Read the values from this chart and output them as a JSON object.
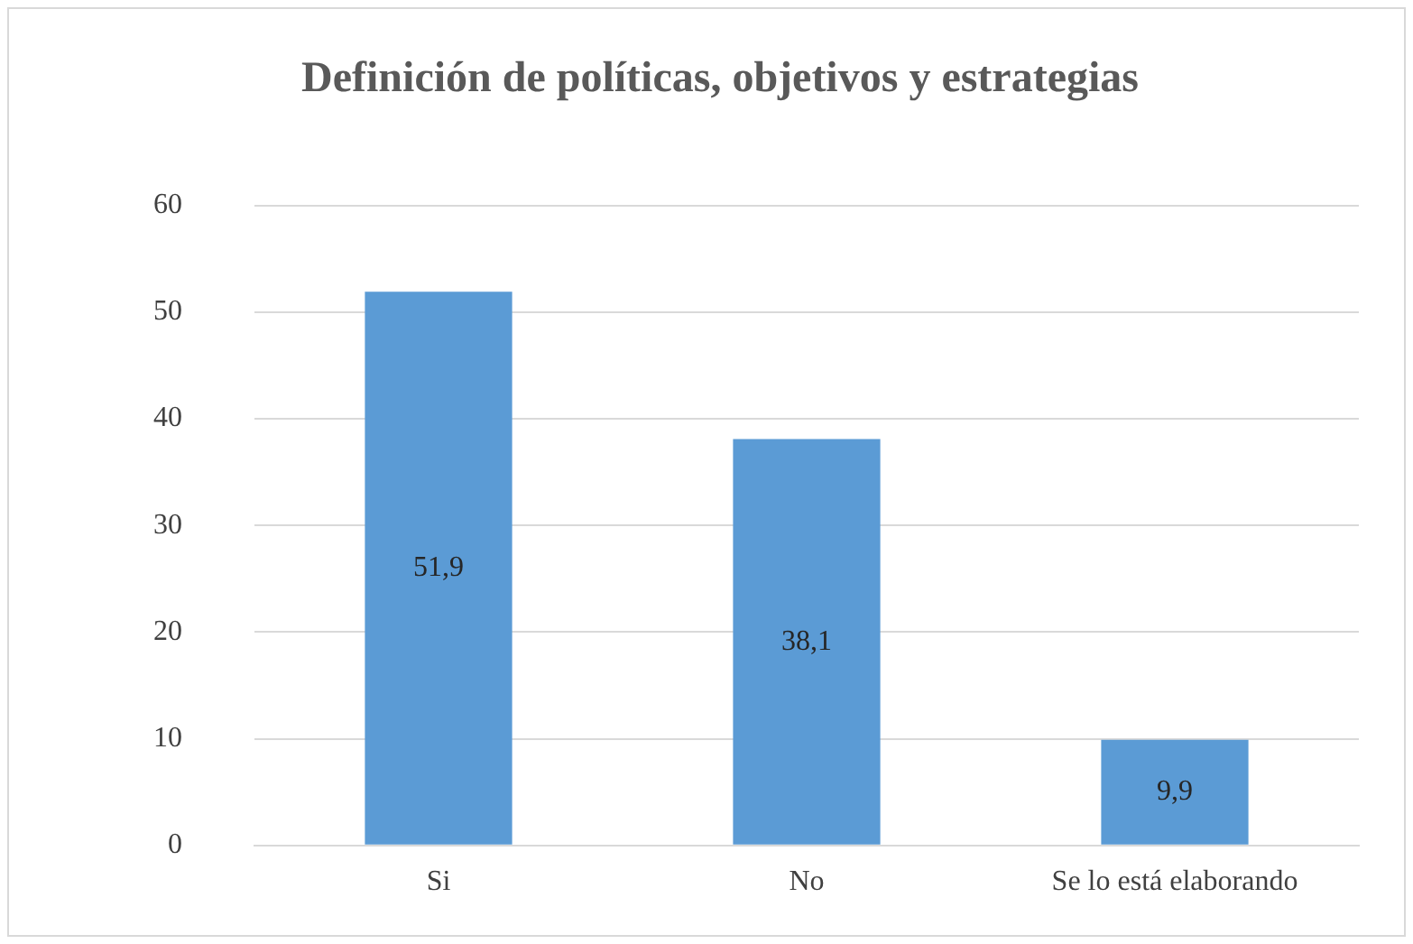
{
  "chart_data": {
    "type": "bar",
    "title": "Definición de políticas, objetivos y estrategias",
    "categories": [
      "Si",
      "No",
      "Se lo está elaborando"
    ],
    "values": [
      51.9,
      38.1,
      9.9
    ],
    "value_labels": [
      "51,9",
      "38,1",
      "9,9"
    ],
    "color": "#5b9bd5",
    "ylim": [
      0,
      60
    ],
    "yticks": [
      0,
      10,
      20,
      30,
      40,
      50,
      60
    ],
    "grid": "y",
    "legend": false
  }
}
